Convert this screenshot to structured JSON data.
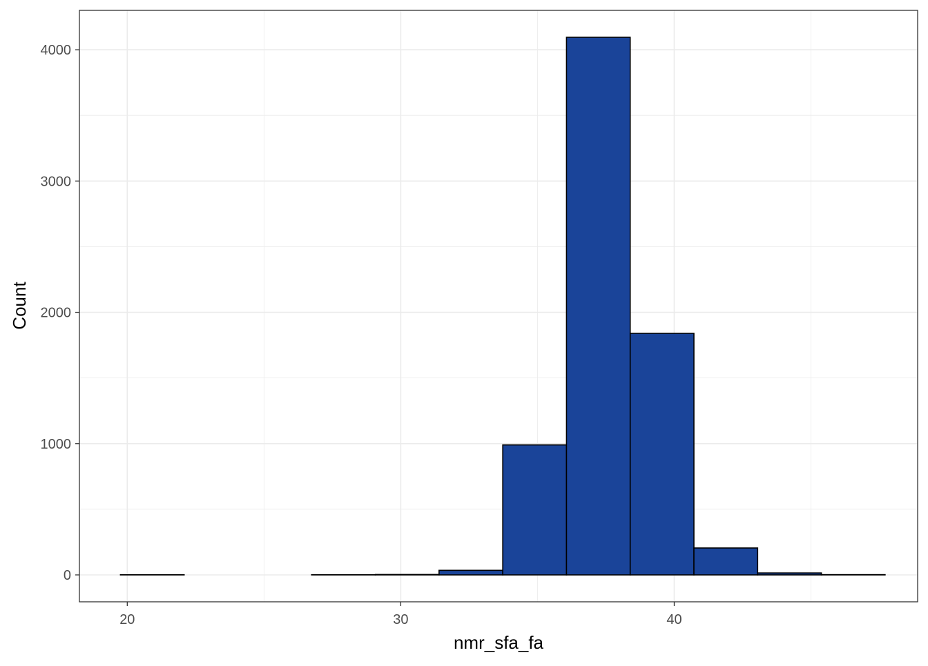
{
  "chart_data": {
    "type": "bar",
    "title": "",
    "xlabel": "nmr_sfa_fa",
    "ylabel": "Count",
    "bin_edges": [
      19.75,
      22.08,
      24.41,
      26.74,
      29.07,
      31.4,
      33.73,
      36.06,
      38.39,
      40.72,
      43.05,
      45.38,
      47.71
    ],
    "counts": [
      1,
      0,
      0,
      1,
      3,
      35,
      990,
      4095,
      1840,
      205,
      15,
      2
    ],
    "xlim": [
      18.25,
      48.9
    ],
    "ylim": [
      -205,
      4300
    ],
    "xticks": [
      20,
      30,
      40
    ],
    "xtick_labels": [
      "20",
      "30",
      "40"
    ],
    "xminor": [
      25,
      35,
      45
    ],
    "yticks": [
      0,
      1000,
      2000,
      3000,
      4000
    ],
    "ytick_labels": [
      "0",
      "1000",
      "2000",
      "3000",
      "4000"
    ],
    "yminor": [
      500,
      1500,
      2500,
      3500
    ],
    "grid": true,
    "legend": "none",
    "bar_fill": "#1A4499",
    "bar_stroke": "#000000",
    "grid_color": "#EBEBEB",
    "tick_label_color": "#4D4D4D"
  }
}
